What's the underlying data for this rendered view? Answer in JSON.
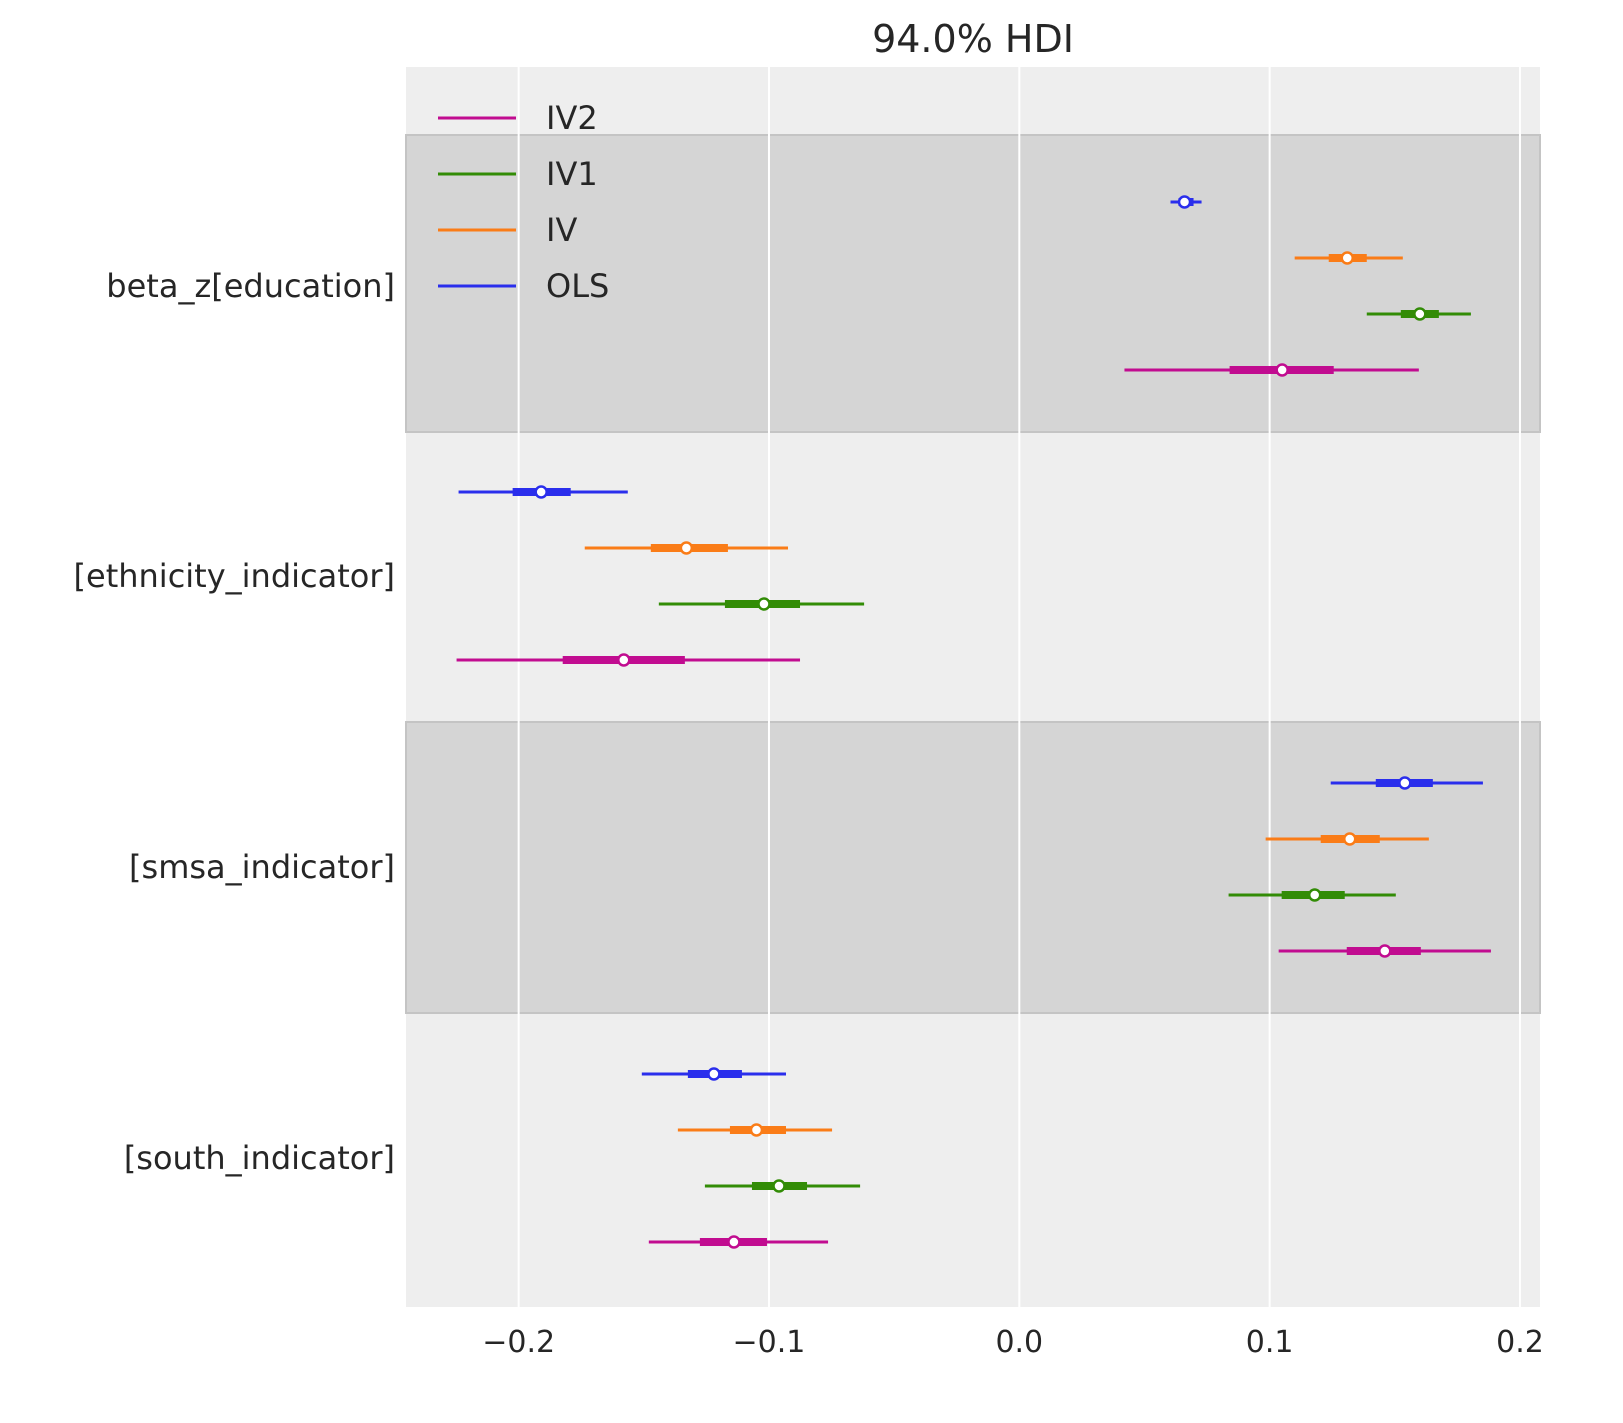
{
  "chart_data": {
    "type": "forest",
    "title": "94.0% HDI",
    "xlim": [
      -0.245,
      0.208
    ],
    "xticks": [
      -0.2,
      -0.1,
      0.0,
      0.1,
      0.2
    ],
    "xtick_labels": [
      "−0.2",
      "−0.1",
      "0.0",
      "0.1",
      "0.2"
    ],
    "grid": "vertical",
    "legend_placement": "top-left",
    "legend": [
      "IV2",
      "IV1",
      "IV",
      "OLS"
    ],
    "colors": {
      "OLS": "#2a2eec",
      "IV": "#fa7c17",
      "IV1": "#328c06",
      "IV2": "#c10c90"
    },
    "band_colors": {
      "shaded": "#d5d5d5",
      "plain": "#eeeeee"
    },
    "series_order": [
      "OLS",
      "IV",
      "IV1",
      "IV2"
    ],
    "rows": [
      {
        "label": "beta_z[education]",
        "shaded": true,
        "estimates": {
          "OLS": {
            "median": 0.066,
            "iqr": [
              0.0636,
              0.0696
            ],
            "hdi": [
              0.0604,
              0.0728
            ]
          },
          "IV": {
            "median": 0.131,
            "iqr": [
              0.1236,
              0.1388
            ],
            "hdi": [
              0.11,
              0.1532
            ]
          },
          "IV1": {
            "median": 0.16,
            "iqr": [
              0.1524,
              0.1676
            ],
            "hdi": [
              0.1388,
              0.1804
            ]
          },
          "IV2": {
            "median": 0.105,
            "iqr": [
              0.084,
              0.1256
            ],
            "hdi": [
              0.042,
              0.1596
            ]
          }
        }
      },
      {
        "label": "[ethnicity_indicator]",
        "shaded": false,
        "estimates": {
          "OLS": {
            "median": -0.191,
            "iqr": [
              -0.2024,
              -0.1792
            ],
            "hdi": [
              -0.224,
              -0.1564
            ]
          },
          "IV": {
            "median": -0.133,
            "iqr": [
              -0.1472,
              -0.1164
            ],
            "hdi": [
              -0.1736,
              -0.0924
            ]
          },
          "IV1": {
            "median": -0.102,
            "iqr": [
              -0.1176,
              -0.0876
            ],
            "hdi": [
              -0.144,
              -0.062
            ]
          },
          "IV2": {
            "median": -0.158,
            "iqr": [
              -0.1824,
              -0.1336
            ],
            "hdi": [
              -0.2248,
              -0.0876
            ]
          }
        }
      },
      {
        "label": "[smsa_indicator]",
        "shaded": true,
        "estimates": {
          "OLS": {
            "median": 0.154,
            "iqr": [
              0.1424,
              0.1652
            ],
            "hdi": [
              0.1244,
              0.1852
            ]
          },
          "IV": {
            "median": 0.132,
            "iqr": [
              0.1204,
              0.144
            ],
            "hdi": [
              0.0984,
              0.1636
            ]
          },
          "IV1": {
            "median": 0.118,
            "iqr": [
              0.1048,
              0.13
            ],
            "hdi": [
              0.0836,
              0.1504
            ]
          },
          "IV2": {
            "median": 0.146,
            "iqr": [
              0.1308,
              0.1604
            ],
            "hdi": [
              0.1036,
              0.1884
            ]
          }
        }
      },
      {
        "label": "[south_indicator]",
        "shaded": false,
        "estimates": {
          "OLS": {
            "median": -0.122,
            "iqr": [
              -0.1324,
              -0.1108
            ],
            "hdi": [
              -0.1508,
              -0.0932
            ]
          },
          "IV": {
            "median": -0.105,
            "iqr": [
              -0.1156,
              -0.0932
            ],
            "hdi": [
              -0.1364,
              -0.0748
            ]
          },
          "IV1": {
            "median": -0.096,
            "iqr": [
              -0.1068,
              -0.0848
            ],
            "hdi": [
              -0.1256,
              -0.0636
            ]
          },
          "IV2": {
            "median": -0.114,
            "iqr": [
              -0.1276,
              -0.1008
            ],
            "hdi": [
              -0.148,
              -0.0764
            ]
          }
        }
      }
    ]
  }
}
